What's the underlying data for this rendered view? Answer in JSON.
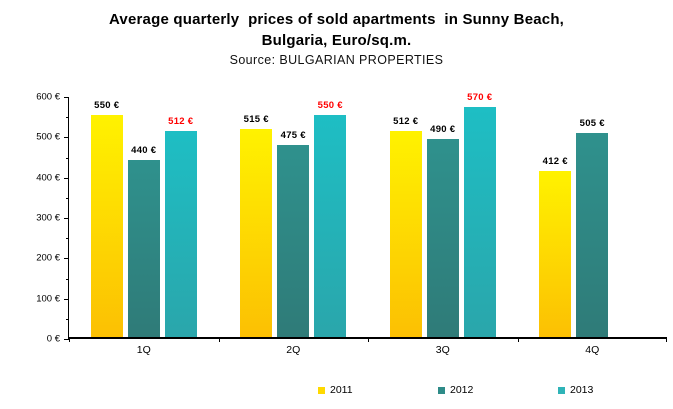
{
  "title": {
    "line1": "Average quarterly  prices of sold apartments  in Sunny Beach,",
    "line2": "Bulgaria, Euro/sq.m.",
    "source": "Source: BULGARIAN PROPERTIES"
  },
  "chart_data": {
    "type": "bar",
    "title": "Average quarterly prices of sold apartments in Sunny Beach, Bulgaria, Euro/sq.m.",
    "subtitle": "Source: BULGARIAN PROPERTIES",
    "categories": [
      "1Q",
      "2Q",
      "3Q",
      "4Q"
    ],
    "series": [
      {
        "name": "2011",
        "values": [
          550,
          515,
          512,
          412
        ],
        "color_top": "#FFF200",
        "color_bottom": "#FCC003",
        "legend_color": "#FFD900",
        "label_color": "#000000"
      },
      {
        "name": "2012",
        "values": [
          440,
          475,
          490,
          505
        ],
        "color_top": "#2F918D",
        "color_bottom": "#2F7B78",
        "legend_color": "#2E8B88",
        "label_color": "#000000"
      },
      {
        "name": "2013",
        "values": [
          512,
          550,
          570,
          null
        ],
        "color_top": "#1EBEC4",
        "color_bottom": "#2AA6AB",
        "legend_color": "#2FB4B8",
        "label_color": "#FF0000"
      }
    ],
    "value_suffix": " €",
    "ylim": [
      0,
      600
    ],
    "ytick_step": 100,
    "ytick_minor_step": 50,
    "ytick_suffix": " €",
    "grid": false,
    "legend_position": "bottom",
    "axis_color": "#000000",
    "background": "#FFFFFF"
  }
}
